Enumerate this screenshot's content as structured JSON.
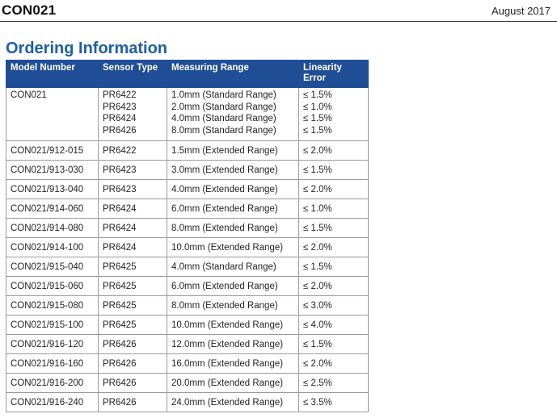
{
  "header": {
    "doc_id": "CON021",
    "date": "August 2017"
  },
  "section": {
    "title": "Ordering Information"
  },
  "table": {
    "columns": [
      "Model Number",
      "Sensor Type",
      "Measuring Range",
      "Linearity Error"
    ],
    "first_row": {
      "model": "CON021",
      "sensors": [
        "PR6422",
        "PR6423",
        "PR6424",
        "PR6426"
      ],
      "ranges": [
        "1.0mm (Standard Range)",
        "2.0mm (Standard Range)",
        "4.0mm (Standard Range)",
        "8.0mm (Standard Range)"
      ],
      "errors": [
        "≤ 1.5%",
        "≤ 1.0%",
        "≤ 1.5%",
        "≤ 1.5%"
      ]
    },
    "rows": [
      {
        "model": "CON021/912-015",
        "sensor": "PR6422",
        "range": "1.5mm (Extended Range)",
        "error": "≤ 2.0%"
      },
      {
        "model": "CON021/913-030",
        "sensor": "PR6423",
        "range": "3.0mm (Extended Range)",
        "error": "≤ 1.5%"
      },
      {
        "model": "CON021/913-040",
        "sensor": "PR6423",
        "range": "4.0mm (Extended Range)",
        "error": "≤ 2.0%"
      },
      {
        "model": "CON021/914-060",
        "sensor": "PR6424",
        "range": "6.0mm (Extended Range)",
        "error": "≤ 1.0%"
      },
      {
        "model": "CON021/914-080",
        "sensor": "PR6424",
        "range": "8.0mm (Extended Range)",
        "error": "≤ 1.5%"
      },
      {
        "model": "CON021/914-100",
        "sensor": "PR6424",
        "range": "10.0mm (Extended Range)",
        "error": "≤ 2.0%"
      },
      {
        "model": "CON021/915-040",
        "sensor": "PR6425",
        "range": "4.0mm (Standard Range)",
        "error": "≤ 1.5%"
      },
      {
        "model": "CON021/915-060",
        "sensor": "PR6425",
        "range": "6.0mm (Extended Range)",
        "error": "≤ 2.0%"
      },
      {
        "model": "CON021/915-080",
        "sensor": "PR6425",
        "range": "8.0mm (Extended Range)",
        "error": "≤ 3.0%"
      },
      {
        "model": "CON021/915-100",
        "sensor": "PR6425",
        "range": "10.0mm (Extended Range)",
        "error": "≤ 4.0%"
      },
      {
        "model": "CON021/916-120",
        "sensor": "PR6426",
        "range": "12.0mm (Extended Range)",
        "error": "≤ 1.5%"
      },
      {
        "model": "CON021/916-160",
        "sensor": "PR6426",
        "range": "16.0mm (Extended Range)",
        "error": "≤ 2.0%"
      },
      {
        "model": "CON021/916-200",
        "sensor": "PR6426",
        "range": "20.0mm (Extended Range)",
        "error": "≤ 2.5%"
      },
      {
        "model": "CON021/916-240",
        "sensor": "PR6426",
        "range": "24.0mm (Extended Range)",
        "error": "≤ 3.5%"
      }
    ]
  }
}
